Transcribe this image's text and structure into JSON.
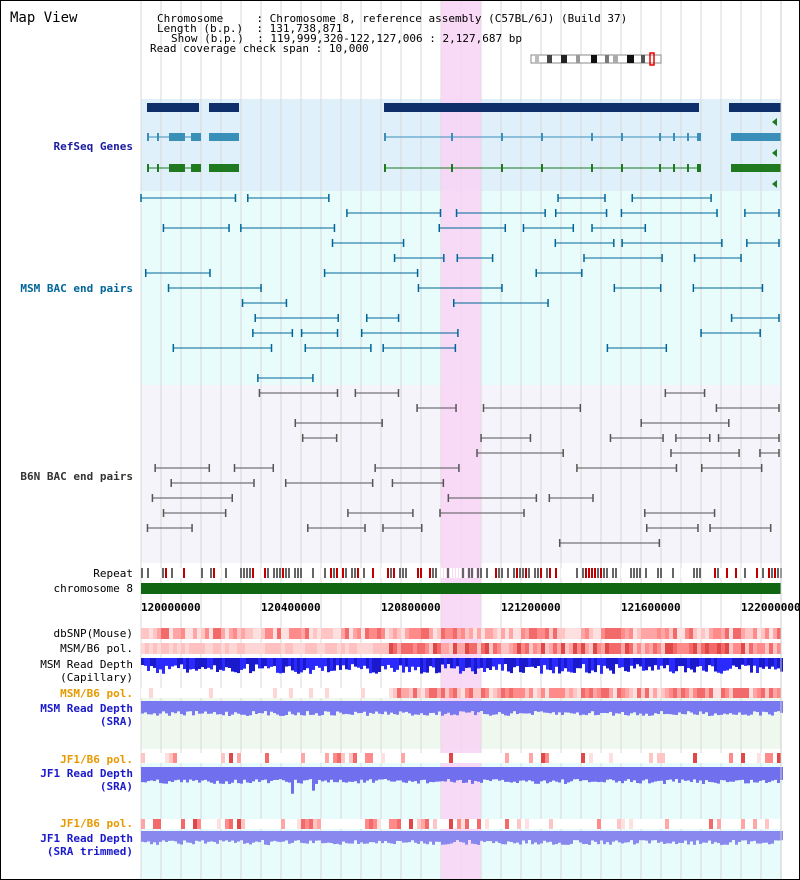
{
  "header": {
    "title": "Map View",
    "chromosome_key": "Chromosome",
    "chromosome_val": "Chromosome 8, reference assembly (C57BL/6J) (Build 37)",
    "length_key": "Length (b.p.)",
    "length_val": "131,738,871",
    "show_key": "Show (b.p.)",
    "show_val": "119,999,320-122,127,006 : 2,127,687 bp",
    "coverage_key": "Read coverage check span",
    "coverage_val": "10,000"
  },
  "tracks": {
    "refseq": "RefSeq Genes",
    "msm_bac": "MSM BAC end pairs",
    "b6n_bac": "B6N BAC end pairs",
    "repeat": "Repeat",
    "chromosome": "chromosome 8",
    "dbsnp": "dbSNP(Mouse)",
    "msm_b6_pol_1": "MSM/B6 pol.",
    "msm_depth_cap_1": "MSM Read Depth",
    "msm_depth_cap_2": "(Capillary)",
    "msm_b6_pol_2": "MSM/B6 pol.",
    "msm_depth_sra_1": "MSM Read Depth",
    "msm_depth_sra_2": "(SRA)",
    "jf1_b6_pol_1": "JF1/B6 pol.",
    "jf1_depth_sra_1": "JF1 Read Depth",
    "jf1_depth_sra_2": "(SRA)",
    "jf1_b6_pol_2": "JF1/B6 pol.",
    "jf1_depth_trim_1": "JF1 Read Depth",
    "jf1_depth_trim_2": "(SRA trimmed)"
  },
  "axis": {
    "ticks": [
      "120000000",
      "120400000",
      "120800000",
      "121200000",
      "121600000",
      "122000000"
    ]
  },
  "colors": {
    "refseq_bg": "#dff0fb",
    "cyan_bg": "#e8fcfc",
    "highlight": "#f8d4f4",
    "gene_navy": "#0f2f6a",
    "gene_blue": "#3a8fb8",
    "gene_green": "#1f7a1f",
    "chrom_green": "#116611",
    "msm_label": "#006699",
    "b6n_label": "#333333",
    "refseq_label": "#1a1aa0",
    "pol_orange": "#e69a00",
    "depth_blue": "#1a1acc",
    "jf1_label": "#1a1acc"
  }
}
